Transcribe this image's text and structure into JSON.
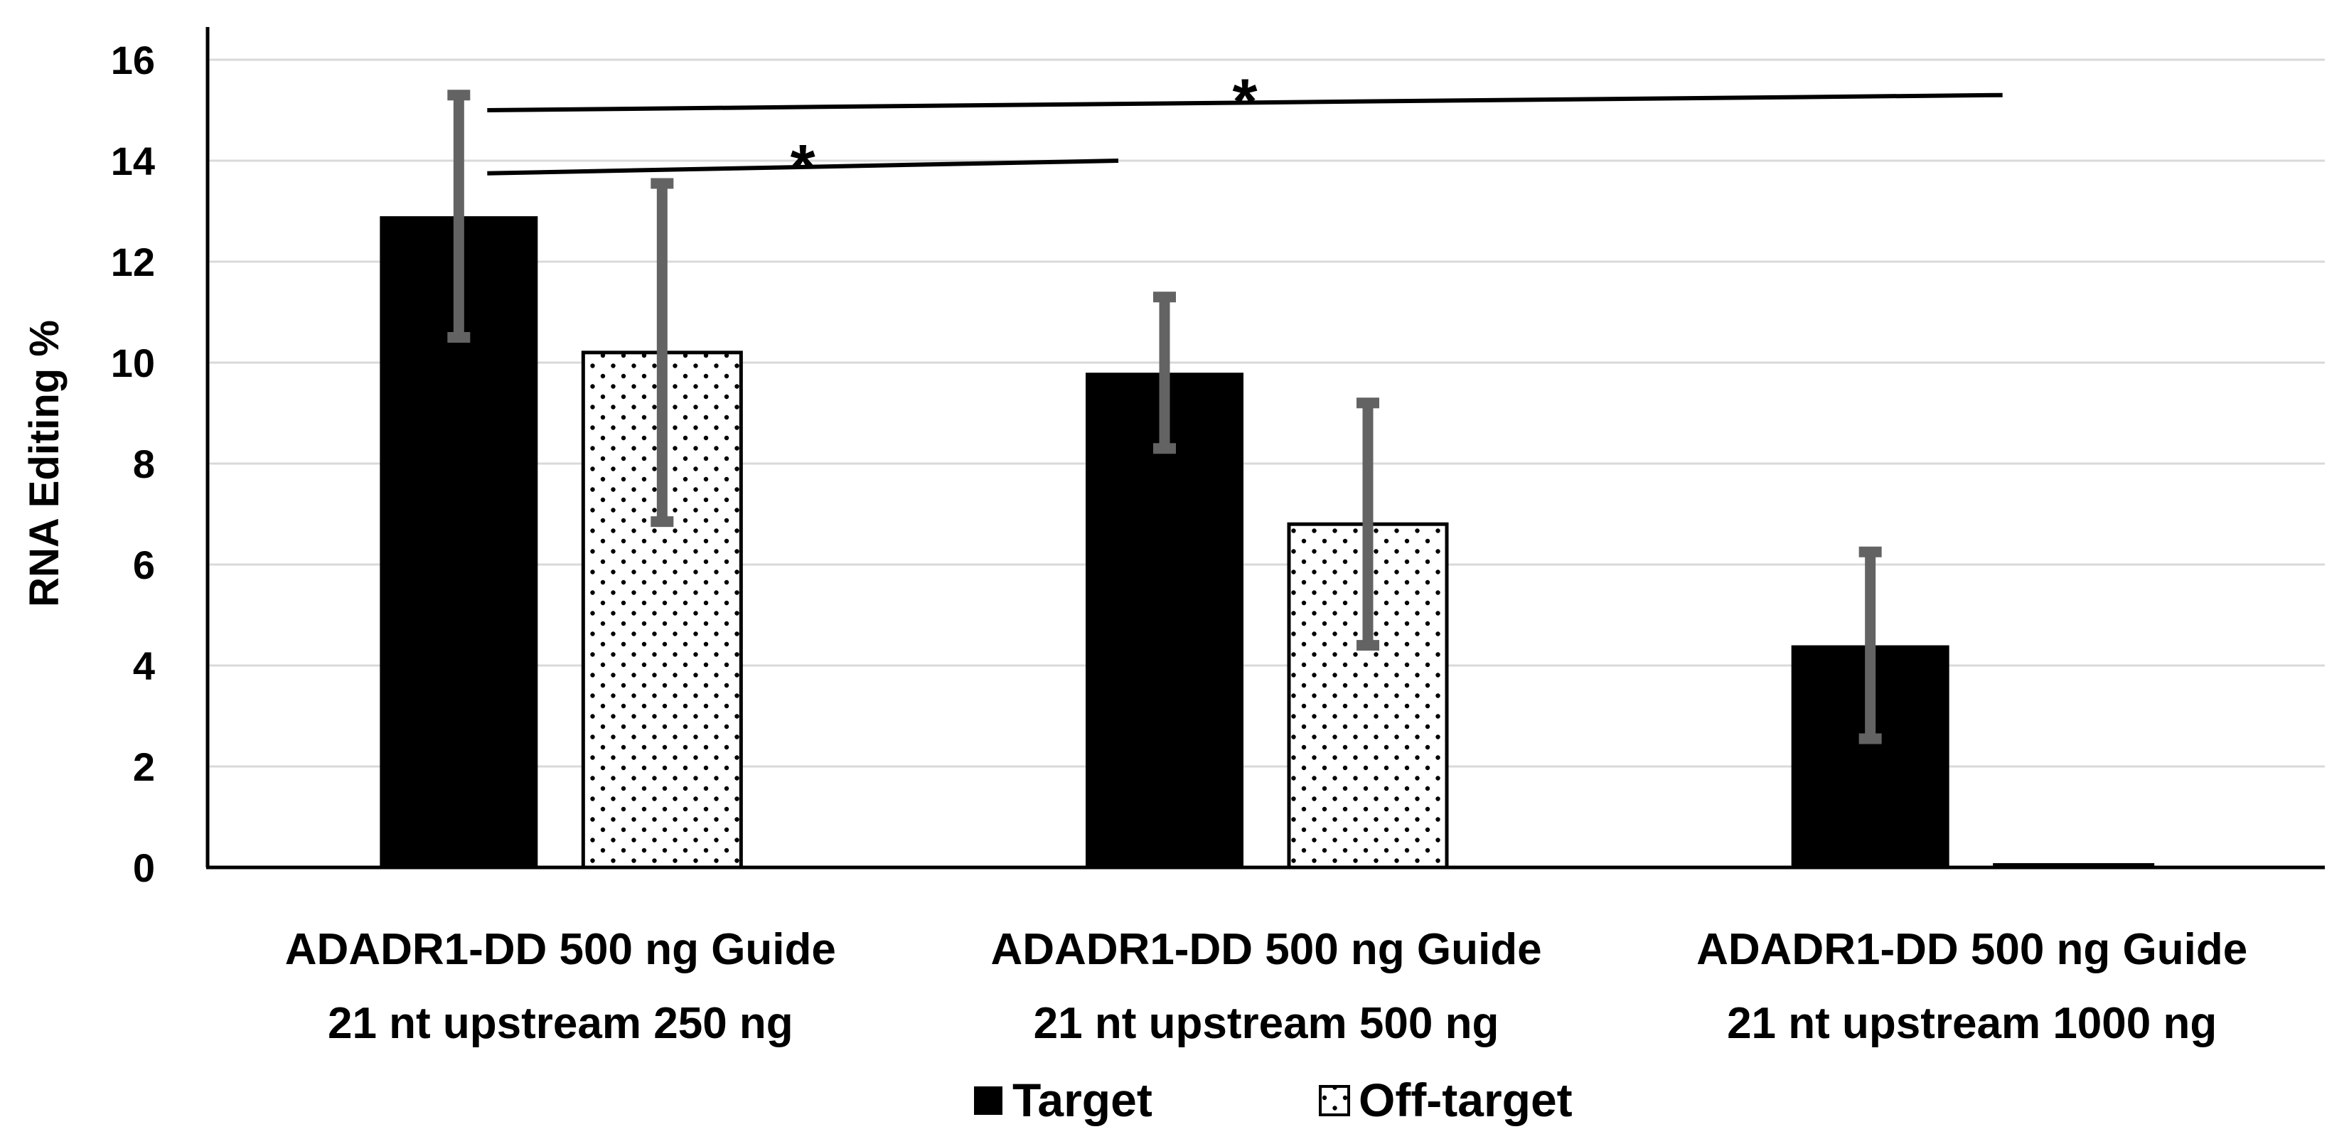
{
  "chart_data": {
    "type": "bar",
    "title": "",
    "xlabel": "",
    "ylabel": "RNA Editing %",
    "ylim": [
      0,
      16
    ],
    "yticks": [
      "0",
      "2",
      "4",
      "6",
      "8",
      "10",
      "12",
      "14",
      "16"
    ],
    "grid": true,
    "legend_position": "bottom",
    "categories": [
      {
        "line1": "ADADR1-DD 500 ng Guide",
        "line2": "21 nt upstream 250 ng"
      },
      {
        "line1": "ADADR1-DD 500 ng Guide",
        "line2": "21 nt upstream 500 ng"
      },
      {
        "line1": "ADADR1-DD 500 ng Guide",
        "line2": "21 nt upstream 1000 ng"
      }
    ],
    "series": [
      {
        "name": "Target",
        "pattern": "solid",
        "values": [
          12.9,
          9.8,
          4.4
        ],
        "errors": [
          2.4,
          1.5,
          1.85
        ]
      },
      {
        "name": "Off-target",
        "pattern": "dotted",
        "values": [
          10.2,
          6.8,
          0.05
        ],
        "errors": [
          3.35,
          2.4,
          0
        ]
      }
    ],
    "annotations": [
      {
        "label": "*",
        "from": "Target: ADADR1-DD 500 ng Guide 21 nt upstream 250 ng",
        "to": "Target: ADADR1-DD 500 ng Guide 21 nt upstream 500 ng",
        "y_start": 13.75,
        "y_end": 14.0
      },
      {
        "label": "*",
        "from": "Target: ADADR1-DD 500 ng Guide 21 nt upstream 250 ng",
        "to": "Target: ADADR1-DD 500 ng Guide 21 nt upstream 1000 ng",
        "y_start": 15.0,
        "y_end": 15.3
      }
    ],
    "colors": {
      "bar": "#000000",
      "dotted_bg": "#ffffff",
      "error_bar": "#636363",
      "grid": "#d9d9d9",
      "axis": "#000000"
    }
  }
}
